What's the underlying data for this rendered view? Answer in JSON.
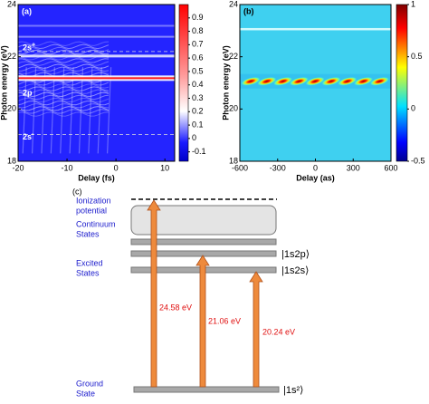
{
  "chart_data": [
    {
      "type": "heatmap",
      "panel": "(a)",
      "xlabel": "Delay (fs)",
      "ylabel": "Photon energy (eV)",
      "xlim": [
        -20,
        12
      ],
      "xticks": [
        -20,
        -10,
        0,
        10
      ],
      "ylim": [
        18,
        24
      ],
      "yticks": [
        18,
        20,
        22,
        24
      ],
      "colormap": "bwr",
      "colorbar": {
        "lim": [
          -0.17,
          1.0
        ],
        "ticks": [
          -0.1,
          0,
          0.1,
          0.2,
          0.3,
          0.4,
          0.5,
          0.6,
          0.7,
          0.8,
          0.9
        ]
      },
      "annotations": [
        {
          "text": "2s",
          "sup": "+"
        },
        {
          "text": "2p"
        },
        {
          "text": "2s",
          "sup": "-"
        }
      ]
    },
    {
      "type": "heatmap",
      "panel": "(b)",
      "xlabel": "Delay (as)",
      "ylabel": "Photon energy (eV)",
      "xlim": [
        -600,
        600
      ],
      "xticks": [
        -600,
        -300,
        0,
        300,
        600
      ],
      "ylim": [
        18,
        24
      ],
      "yticks": [
        18,
        20,
        22,
        24
      ],
      "colormap": "jet",
      "colorbar": {
        "lim": [
          -0.5,
          1
        ],
        "ticks": [
          -0.5,
          0,
          0.5,
          1
        ]
      }
    }
  ],
  "diagram": {
    "label": "(c)",
    "left_labels": [
      [
        "Ionization",
        "potential"
      ],
      [
        "Continuum",
        "States"
      ],
      [
        "Excited",
        "States"
      ],
      [
        "Ground",
        "State"
      ]
    ],
    "states": [
      "|1s2p⟩",
      "|1s2s⟩",
      "|1s²⟩"
    ],
    "transitions": [
      "24.58 eV",
      "21.06 eV",
      "20.24 eV"
    ]
  }
}
